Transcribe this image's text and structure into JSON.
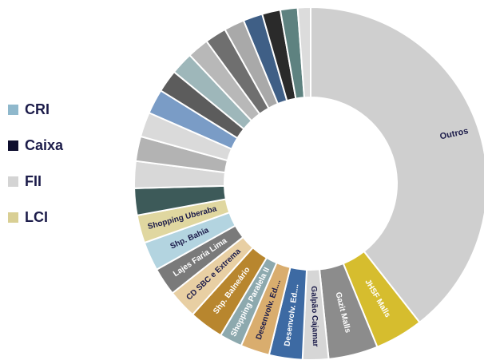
{
  "legend": {
    "items": [
      {
        "label": "CRI",
        "color": "#8FB8CC"
      },
      {
        "label": "Caixa",
        "color": "#0E0E2E"
      },
      {
        "label": "FII",
        "color": "#D4D4D4"
      },
      {
        "label": "LCI",
        "color": "#D9CF94"
      }
    ]
  },
  "chart_data": {
    "type": "donut",
    "start_angle_deg": 0,
    "direction": "clockwise",
    "slices": [
      {
        "label": "Outros",
        "value": 40.0,
        "color": "#CFCFCF",
        "text_color": "#1c1c4a"
      },
      {
        "label": "JHSF Malls",
        "value": 4.5,
        "color": "#D6BD2E",
        "text_color": "#ffffff"
      },
      {
        "label": "Gazit Malls",
        "value": 4.6,
        "color": "#8C8C8C",
        "text_color": "#ffffff"
      },
      {
        "label": "Galpão Cajamar",
        "value": 2.4,
        "color": "#D6D6D6",
        "text_color": "#1c1c4a"
      },
      {
        "label": "Desenvolv. Ed....",
        "value": 3.1,
        "color": "#3D6AA3",
        "text_color": "#ffffff"
      },
      {
        "label": "Desenvolv. Ed....",
        "value": 2.7,
        "color": "#D9AD6E",
        "text_color": "#1c1c4a"
      },
      {
        "label": "Shopping Paralela II",
        "value": 2.1,
        "color": "#8DA9AE",
        "text_color": "#ffffff"
      },
      {
        "label": "Shp. Balneário",
        "value": 3.2,
        "color": "#B8862E",
        "text_color": "#ffffff"
      },
      {
        "label": "CD SBC e Extrema",
        "value": 2.7,
        "color": "#E8CFA3",
        "text_color": "#1c1c4a"
      },
      {
        "label": "Lajes Faria Lima",
        "value": 2.6,
        "color": "#7A7A7A",
        "text_color": "#ffffff"
      },
      {
        "label": "Shp. Bahia",
        "value": 2.7,
        "color": "#B3D4E0",
        "text_color": "#1c1c4a"
      },
      {
        "label": "Shopping Uberaba",
        "value": 2.6,
        "color": "#E0D7A0",
        "text_color": "#1c1c4a"
      },
      {
        "label": "",
        "value": 2.5,
        "color": "#3D5A59"
      },
      {
        "label": "",
        "value": 2.5,
        "color": "#D8D8D8"
      },
      {
        "label": "",
        "value": 2.3,
        "color": "#B3B3B3"
      },
      {
        "label": "",
        "value": 2.3,
        "color": "#DADADA"
      },
      {
        "label": "",
        "value": 2.3,
        "color": "#7A9CC6"
      },
      {
        "label": "",
        "value": 2.1,
        "color": "#5C5C5C"
      },
      {
        "label": "",
        "value": 2.1,
        "color": "#9EB7BA"
      },
      {
        "label": "",
        "value": 2.0,
        "color": "#B8B8B8"
      },
      {
        "label": "",
        "value": 2.0,
        "color": "#6F6F6F"
      },
      {
        "label": "",
        "value": 1.9,
        "color": "#A9A9A9"
      },
      {
        "label": "",
        "value": 1.8,
        "color": "#3F5F86"
      },
      {
        "label": "",
        "value": 1.7,
        "color": "#2A2A2A"
      },
      {
        "label": "",
        "value": 1.6,
        "color": "#5E8280"
      },
      {
        "label": "",
        "value": 1.2,
        "color": "#DCDCDC"
      }
    ]
  }
}
